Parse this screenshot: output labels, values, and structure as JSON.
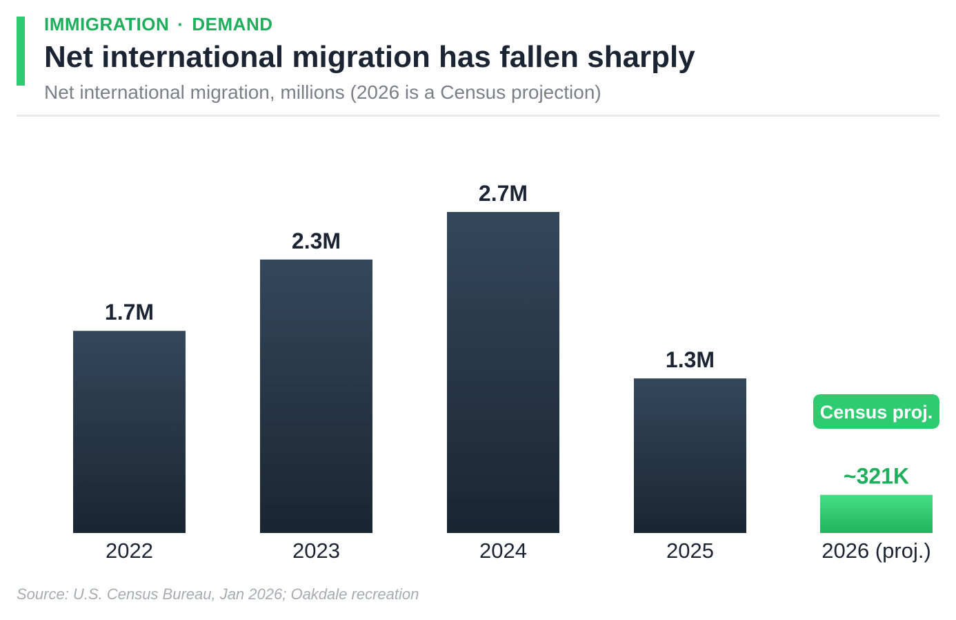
{
  "header": {
    "kicker_left": "IMMIGRATION",
    "kicker_sep": "·",
    "kicker_right": "DEMAND",
    "title": "Net international migration has fallen sharply",
    "subtitle": "Net international migration, millions (2026 is a Census projection)"
  },
  "footer": {
    "source": "Source: U.S. Census Bureau, Jan 2026; Oakdale recreation"
  },
  "colors": {
    "accent": "#2ecc71",
    "kicker": "#1fae5b",
    "bar_top": "#34475c",
    "bar_bottom": "#1a2532",
    "proj_top": "#45de86",
    "proj_bottom": "#1fb45e",
    "value_label": "#1b2433",
    "proj_value_label": "#1fae5b",
    "axis_label": "#1b2433"
  },
  "chart_data": {
    "type": "bar",
    "categories": [
      "2022",
      "2023",
      "2024",
      "2025",
      "2026 (proj.)"
    ],
    "values": [
      1.7,
      2.3,
      2.7,
      1.3,
      0.321
    ],
    "value_labels": [
      "1.7M",
      "2.3M",
      "2.7M",
      "1.3M",
      "~321K"
    ],
    "projected": [
      false,
      false,
      false,
      false,
      true
    ],
    "annotation": "Census proj.",
    "title": "Net international migration has fallen sharply",
    "subtitle": "Net international migration, millions (2026 is a Census projection)",
    "xlabel": "",
    "ylabel": "",
    "ylim": [
      0,
      2.7
    ],
    "grid": false,
    "legend": "none"
  }
}
